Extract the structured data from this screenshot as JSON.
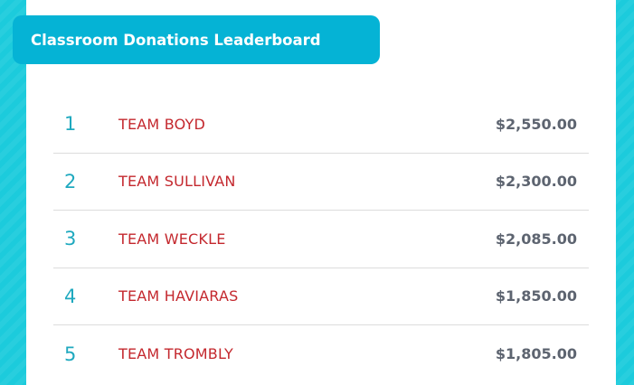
{
  "header": {
    "title": "Classroom Donations Leaderboard"
  },
  "colors": {
    "background": "#1ccbdc",
    "header": "#05b3d5",
    "rank": "#1fa9bf",
    "team": "#c4282e",
    "amount": "#5d6470"
  },
  "leaderboard": [
    {
      "rank": "1",
      "team": "TEAM BOYD",
      "amount": "$2,550.00"
    },
    {
      "rank": "2",
      "team": "TEAM SULLIVAN",
      "amount": "$2,300.00"
    },
    {
      "rank": "3",
      "team": "TEAM WECKLE",
      "amount": "$2,085.00"
    },
    {
      "rank": "4",
      "team": "TEAM HAVIARAS",
      "amount": "$1,850.00"
    },
    {
      "rank": "5",
      "team": "TEAM TROMBLY",
      "amount": "$1,805.00"
    }
  ]
}
